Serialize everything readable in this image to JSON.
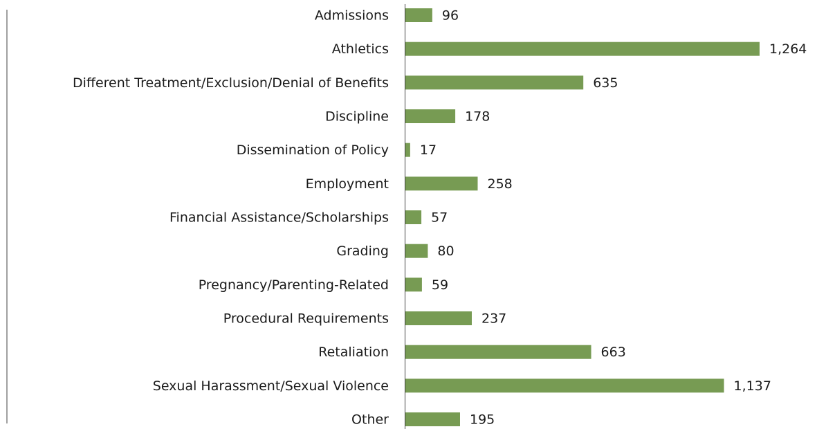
{
  "chart_data": {
    "type": "bar",
    "orientation": "horizontal",
    "categories": [
      "Admissions",
      "Athletics",
      "Different Treatment/Exclusion/Denial of Benefits",
      "Discipline",
      "Dissemination of Policy",
      "Employment",
      "Financial Assistance/Scholarships",
      "Grading",
      "Pregnancy/Parenting-Related",
      "Procedural Requirements",
      "Retaliation",
      "Sexual Harassment/Sexual Violence",
      "Other"
    ],
    "values": [
      96,
      1264,
      635,
      178,
      17,
      258,
      57,
      80,
      59,
      237,
      663,
      1137,
      195
    ],
    "value_labels": [
      "96",
      "1,264",
      "635",
      "178",
      "17",
      "258",
      "57",
      "80",
      "59",
      "237",
      "663",
      "1,137",
      "195"
    ],
    "color": "#779b53"
  }
}
